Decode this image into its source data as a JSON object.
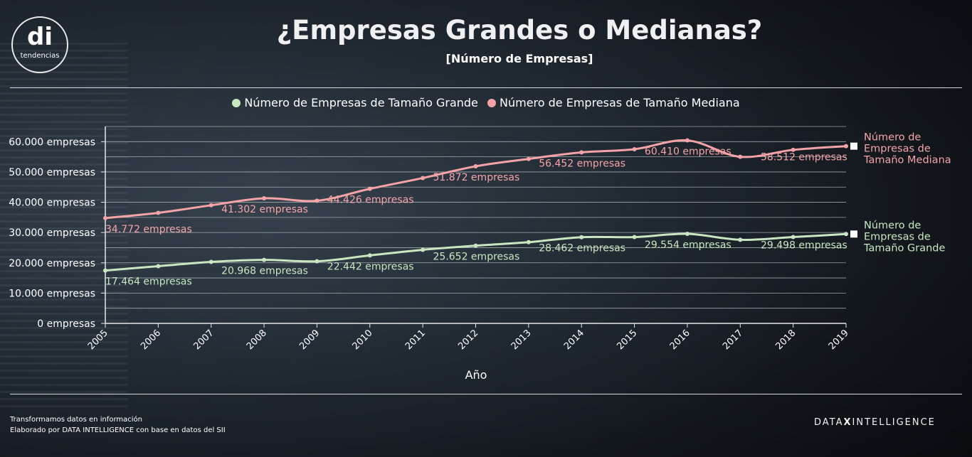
{
  "header": {
    "title": "¿Empresas Grandes o Medianas?",
    "subtitle": "[Número de Empresas]"
  },
  "logo": {
    "mark": "di",
    "word": "tendencias"
  },
  "footer": {
    "line1": "Transformamos datos en información",
    "line2": "Elaborado por DATA INTELLIGENCE con base en datos del SII"
  },
  "brand": {
    "left": "DATA",
    "mid": "X",
    "right": "INTELLIGENCE"
  },
  "colors": {
    "grande": "#c8e6c0",
    "mediana": "#f4a4a8",
    "grid": "#c9cdd1"
  },
  "chart_data": {
    "type": "line",
    "xlabel": "Año",
    "ylabel": "",
    "ylim": [
      0,
      65000
    ],
    "yticks": [
      0,
      10000,
      20000,
      30000,
      40000,
      50000,
      60000
    ],
    "ytick_labels": [
      "0 empresas",
      "10.000 empresas",
      "20.000 empresas",
      "30.000 empresas",
      "40.000 empresas",
      "50.000 empresas",
      "60.000 empresas"
    ],
    "x": [
      "2005",
      "2006",
      "2007",
      "2008",
      "2009",
      "2010",
      "2011",
      "2012",
      "2013",
      "2014",
      "2015",
      "2016",
      "2017",
      "2018",
      "2019"
    ],
    "legend_position": "top",
    "grid": true,
    "series": [
      {
        "name": "Número de Empresas de Tamaño Grande",
        "end_label": [
          "Número de",
          "Empresas de",
          "Tamaño Grande"
        ],
        "color": "#c8e6c0",
        "values": [
          17464,
          18900,
          20300,
          20968,
          20500,
          22442,
          24300,
          25652,
          26800,
          28462,
          28500,
          29554,
          27600,
          28500,
          29498
        ],
        "labels": [
          "17.464 empresas",
          "",
          "",
          "20.968 empresas",
          "",
          "22.442 empresas",
          "",
          "25.652 empresas",
          "",
          "28.462 empresas",
          "",
          "29.554 empresas",
          "",
          "",
          "29.498 empresas"
        ],
        "label_index": [
          0,
          3,
          5,
          7,
          9,
          11,
          14
        ]
      },
      {
        "name": "Número de Empresas de Tamaño Mediana",
        "end_label": [
          "Número de",
          "Empresas de",
          "Tamaño Mediana"
        ],
        "color": "#f4a4a8",
        "values": [
          34772,
          36500,
          39000,
          41302,
          40500,
          44426,
          48000,
          51872,
          54300,
          56452,
          57500,
          60410,
          55000,
          57300,
          58512
        ],
        "labels": [
          "34.772 empresas",
          "",
          "",
          "41.302 empresas",
          "",
          "44.426 empresas",
          "",
          "51.872 empresas",
          "",
          "56.452 empresas",
          "",
          "60.410 empresas",
          "",
          "",
          "58.512 empresas"
        ],
        "label_index": [
          0,
          3,
          5,
          7,
          9,
          11,
          14
        ]
      }
    ]
  }
}
